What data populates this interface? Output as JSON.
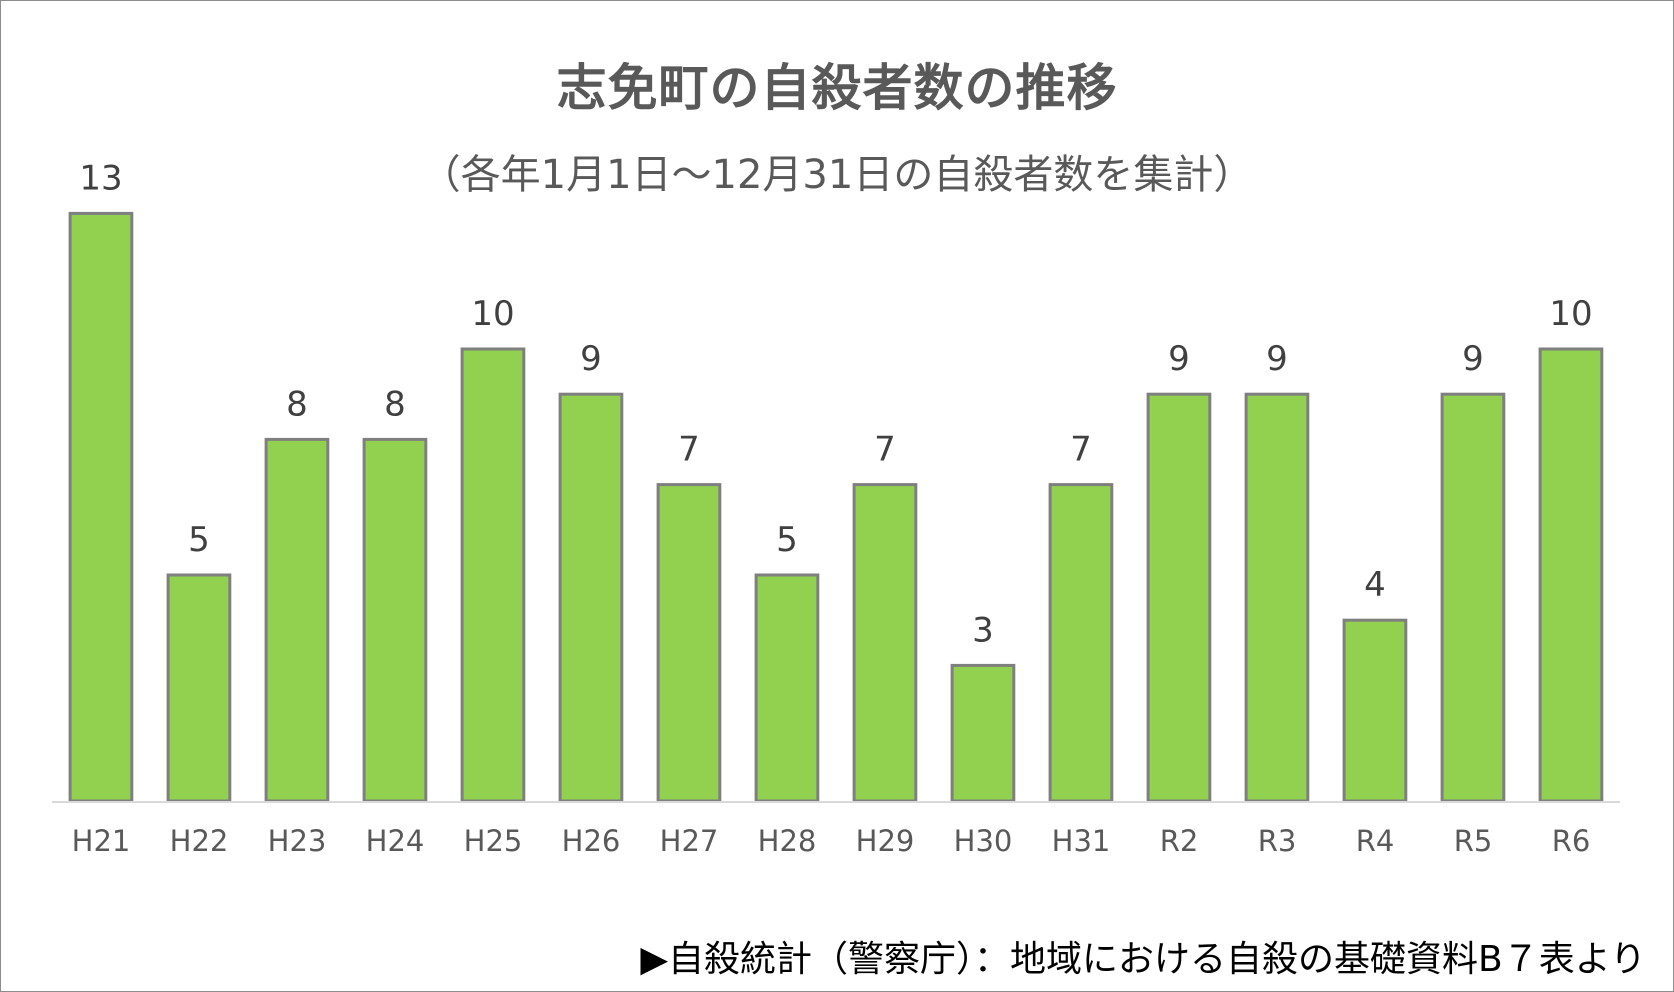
{
  "chart_data": {
    "type": "bar",
    "title": "志免町の自殺者数の推移",
    "subtitle": "（各年1月1日～12月31日の自殺者数を集計）",
    "categories": [
      "H21",
      "H22",
      "H23",
      "H24",
      "H25",
      "H26",
      "H27",
      "H28",
      "H29",
      "H30",
      "H31",
      "R2",
      "R3",
      "R4",
      "R5",
      "R6"
    ],
    "values": [
      13,
      5,
      8,
      8,
      10,
      9,
      7,
      5,
      7,
      3,
      7,
      9,
      9,
      4,
      9,
      10
    ],
    "xlabel": "",
    "ylabel": "",
    "ylim": [
      0,
      14
    ],
    "grid": false,
    "legend": "none",
    "colors": {
      "bar_fill": "#92d050",
      "bar_outline": "#7f7f7f"
    }
  },
  "source_note": "▶自殺統計（警察庁）：地域における自殺の基礎資料B７表より"
}
